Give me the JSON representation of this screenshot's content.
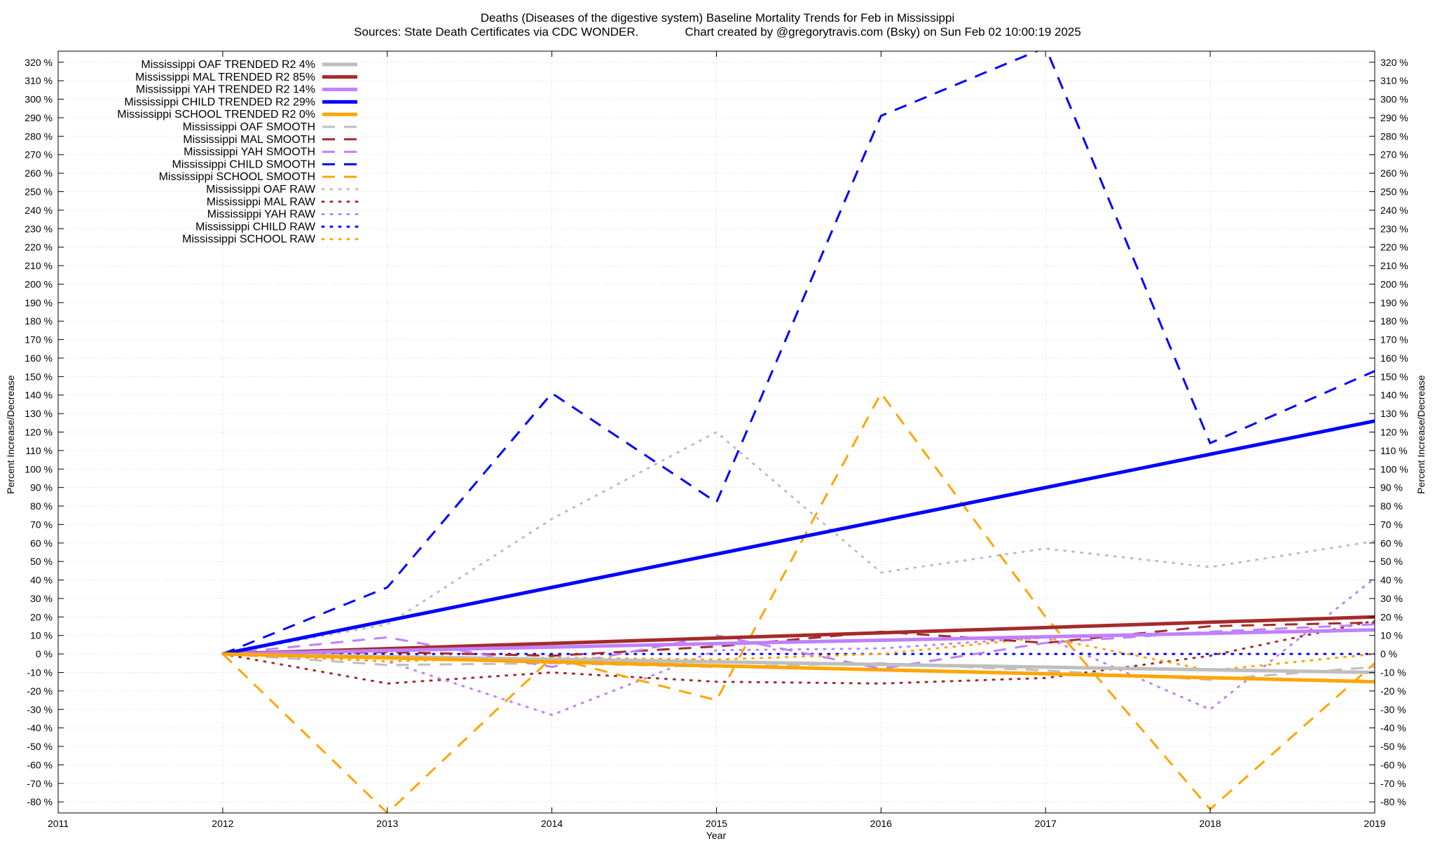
{
  "chart_data": {
    "type": "line",
    "title": "Deaths (Diseases of the digestive system)  Baseline Mortality Trends for Feb in Mississippi",
    "subtitle": "Sources: State Death Certificates via CDC WONDER.              Chart created by @gregorytravis.com (Bsky) on Sun Feb 02 10:00:19 2025",
    "xlabel": "Year",
    "ylabel": "Percent Increase/Decrease",
    "y2label": "Percent Increase/Decrease",
    "xlim": [
      2011,
      2019
    ],
    "ylim": [
      -86,
      326
    ],
    "x_ticks": [
      2011,
      2012,
      2013,
      2014,
      2015,
      2016,
      2017,
      2018,
      2019
    ],
    "y_ticks": [
      -80,
      -70,
      -60,
      -50,
      -40,
      -30,
      -20,
      -10,
      0,
      10,
      20,
      30,
      40,
      50,
      60,
      70,
      80,
      90,
      100,
      110,
      120,
      130,
      140,
      150,
      160,
      170,
      180,
      190,
      200,
      210,
      220,
      230,
      240,
      250,
      260,
      270,
      280,
      290,
      300,
      310,
      320
    ],
    "y_tick_suffix": " %",
    "grid": true,
    "legend_position": "top-left",
    "series": [
      {
        "name": "Mississippi OAF TRENDED R2   4%",
        "style": "solid",
        "color": "#bebebe",
        "x": [
          2012,
          2019
        ],
        "y": [
          0,
          -10
        ]
      },
      {
        "name": "Mississippi MAL TRENDED R2  85%",
        "style": "solid",
        "color": "#a52a2a",
        "x": [
          2012,
          2019
        ],
        "y": [
          0,
          20
        ]
      },
      {
        "name": "Mississippi YAH TRENDED R2  14%",
        "style": "solid",
        "color": "#c080ff",
        "x": [
          2012,
          2019
        ],
        "y": [
          0,
          13
        ]
      },
      {
        "name": "Mississippi CHILD TRENDED R2  29%",
        "style": "solid",
        "color": "#0000ff",
        "x": [
          2012,
          2019
        ],
        "y": [
          0,
          126
        ]
      },
      {
        "name": "Mississippi SCHOOL TRENDED R2   0%",
        "style": "solid",
        "color": "#ffa500",
        "x": [
          2012,
          2019
        ],
        "y": [
          0,
          -15
        ]
      },
      {
        "name": "Mississippi OAF SMOOTH",
        "style": "dashed",
        "color": "#bebebe",
        "x": [
          2012,
          2013,
          2014,
          2015,
          2016,
          2017,
          2018,
          2019
        ],
        "y": [
          0,
          -6,
          -5,
          -7,
          -5,
          -9,
          -14,
          -7
        ]
      },
      {
        "name": "Mississippi MAL SMOOTH",
        "style": "dashed",
        "color": "#a52a2a",
        "x": [
          2012,
          2013,
          2014,
          2015,
          2016,
          2017,
          2018,
          2019
        ],
        "y": [
          0,
          1,
          -1,
          4,
          12,
          6,
          15,
          17
        ]
      },
      {
        "name": "Mississippi YAH SMOOTH",
        "style": "dashed",
        "color": "#c080ff",
        "x": [
          2012,
          2013,
          2014,
          2015,
          2016,
          2017,
          2018,
          2019
        ],
        "y": [
          0,
          9,
          -7,
          10,
          -8,
          6,
          12,
          16
        ]
      },
      {
        "name": "Mississippi CHILD SMOOTH",
        "style": "dashed",
        "color": "#0000ff",
        "x": [
          2012,
          2013,
          2014,
          2015,
          2016,
          2017,
          2018,
          2019
        ],
        "y": [
          0,
          36,
          141,
          82,
          291,
          328,
          114,
          153
        ]
      },
      {
        "name": "Mississippi SCHOOL SMOOTH",
        "style": "dashed",
        "color": "#ffa500",
        "x": [
          2012,
          2013,
          2014,
          2015,
          2016,
          2017,
          2018,
          2019
        ],
        "y": [
          0,
          -86,
          -2,
          -25,
          141,
          20,
          -84,
          -5
        ]
      },
      {
        "name": "Mississippi OAF RAW",
        "style": "dotted",
        "color": "#bebebe",
        "x": [
          2012,
          2013,
          2014,
          2015,
          2016,
          2017,
          2018,
          2019
        ],
        "y": [
          0,
          16,
          73,
          120,
          44,
          57,
          47,
          61
        ]
      },
      {
        "name": "Mississippi MAL RAW",
        "style": "dotted",
        "color": "#a52a2a",
        "x": [
          2012,
          2013,
          2014,
          2015,
          2016,
          2017,
          2018,
          2019
        ],
        "y": [
          0,
          -16,
          -10,
          -15,
          -16,
          -13,
          -1,
          18
        ]
      },
      {
        "name": "Mississippi YAH RAW",
        "style": "dotted",
        "color": "#c080ff",
        "x": [
          2012,
          2013,
          2014,
          2015,
          2016,
          2017,
          2018,
          2019
        ],
        "y": [
          0,
          -4,
          -33,
          2,
          3,
          9,
          -30,
          41
        ]
      },
      {
        "name": "Mississippi CHILD RAW",
        "style": "dotted",
        "color": "#0000ff",
        "x": [
          2012,
          2013,
          2014,
          2015,
          2016,
          2017,
          2018,
          2019
        ],
        "y": [
          0,
          0,
          0,
          0,
          0,
          0,
          0,
          0
        ]
      },
      {
        "name": "Mississippi SCHOOL RAW",
        "style": "dotted",
        "color": "#ffa500",
        "x": [
          2012,
          2013,
          2014,
          2015,
          2016,
          2017,
          2018,
          2019
        ],
        "y": [
          0,
          -4,
          -2,
          -3,
          0,
          9,
          -9,
          0
        ]
      }
    ]
  }
}
